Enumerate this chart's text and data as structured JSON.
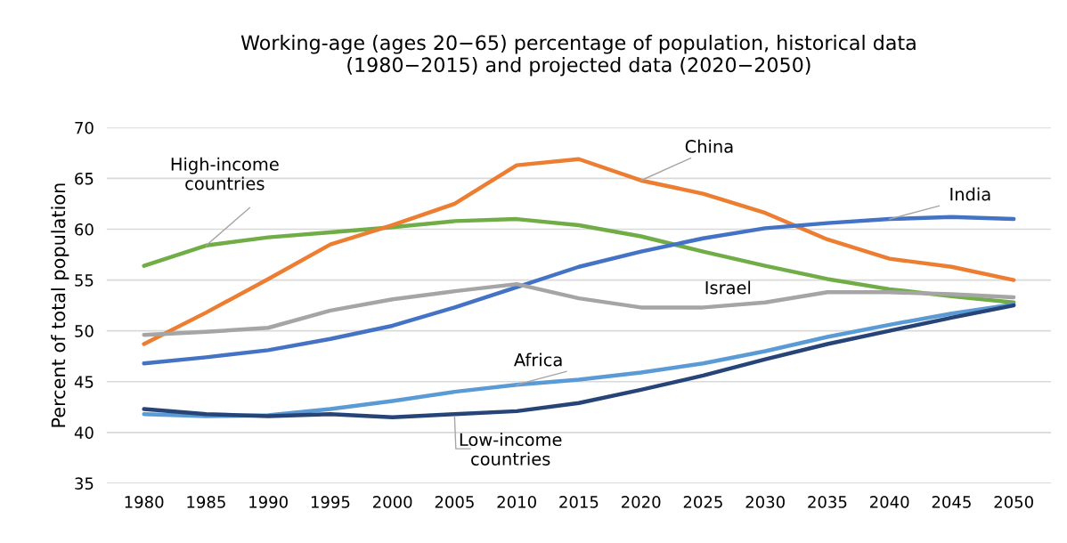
{
  "chart_data": {
    "type": "line",
    "title": "Working-age (ages 20−65) percentage of population, historical data\n(1980−2015) and projected data (2020−2050)",
    "ylabel": "Percent of total population",
    "categories": [
      "1980",
      "1985",
      "1990",
      "1995",
      "2000",
      "2005",
      "2010",
      "2015",
      "2020",
      "2025",
      "2030",
      "2035",
      "2040",
      "2045",
      "2050"
    ],
    "series": [
      {
        "name": "High-income\ncountries",
        "color": "#70ad47",
        "values": [
          56.4,
          58.4,
          59.2,
          59.7,
          60.2,
          60.8,
          61.0,
          60.4,
          59.3,
          57.8,
          56.4,
          55.1,
          54.1,
          53.4,
          52.8
        ]
      },
      {
        "name": "China",
        "color": "#ed7d31",
        "values": [
          48.7,
          51.8,
          55.1,
          58.5,
          60.4,
          62.5,
          66.3,
          66.9,
          64.8,
          63.5,
          61.6,
          59.0,
          57.1,
          56.3,
          55.0
        ]
      },
      {
        "name": "India",
        "color": "#4472c4",
        "values": [
          46.8,
          47.4,
          48.1,
          49.2,
          50.5,
          52.3,
          54.3,
          56.3,
          57.8,
          59.1,
          60.1,
          60.6,
          61.0,
          61.2,
          61.0
        ]
      },
      {
        "name": "Israel",
        "color": "#a5a5a5",
        "values": [
          49.6,
          49.9,
          50.3,
          52.0,
          53.1,
          53.9,
          54.6,
          53.2,
          52.3,
          52.3,
          52.8,
          53.8,
          53.8,
          53.6,
          53.3
        ]
      },
      {
        "name": "Africa",
        "color": "#5b9bd5",
        "values": [
          41.8,
          41.6,
          41.7,
          42.3,
          43.1,
          44.0,
          44.7,
          45.2,
          45.9,
          46.8,
          48.0,
          49.4,
          50.6,
          51.7,
          52.6
        ]
      },
      {
        "name": "Low-income\ncountries",
        "color": "#264478",
        "values": [
          42.3,
          41.8,
          41.6,
          41.8,
          41.5,
          41.8,
          42.1,
          42.9,
          44.2,
          45.6,
          47.2,
          48.7,
          50.0,
          51.3,
          52.5
        ]
      }
    ],
    "ylim": [
      35,
      70
    ],
    "yticks": [
      35,
      40,
      45,
      50,
      55,
      60,
      65,
      70
    ],
    "grid": "y",
    "legend": false,
    "marker": "none",
    "line_style": "solid"
  }
}
